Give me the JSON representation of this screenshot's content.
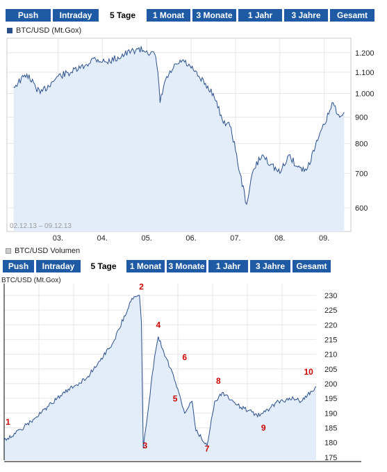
{
  "tabs1": [
    "Push",
    "Intraday",
    "5 Tage",
    "1 Monat",
    "3 Monate",
    "1 Jahr",
    "3 Jahre",
    "Gesamt"
  ],
  "active_tab": "5 Tage",
  "legend1": "BTC/USD (Mt.Gox)",
  "legend2": "BTC/USD Volumen",
  "tabs2": [
    "Push",
    "Intraday",
    "5 Tage",
    "1 Monat",
    "3 Monate",
    "1 Jahr",
    "3 Jahre",
    "Gesamt"
  ],
  "colors": {
    "tab": "#1f5aa5",
    "line": "#2a4f8a",
    "fill": "#e3ecf9",
    "annotation": "#cc0000",
    "grid": "#e6e6e6"
  },
  "chart_data": [
    {
      "type": "area",
      "series_label": "BTC/USD (Mt.Gox)",
      "date_range": "02.12.13 – 09.12.13",
      "x_ticks": [
        "03.",
        "04.",
        "05.",
        "06.",
        "07.",
        "08.",
        "09."
      ],
      "y_ticks": [
        600,
        700,
        800,
        900,
        1000,
        1100,
        1200
      ],
      "y_tick_labels": [
        "600",
        "700",
        "800",
        "900",
        "1.000",
        "1.100",
        "1.200"
      ],
      "ylim": [
        540,
        1280
      ],
      "y_scale": "log",
      "x": [
        2.0,
        2.3,
        2.6,
        3.0,
        3.3,
        3.6,
        3.8,
        4.1,
        4.5,
        4.8,
        5.0,
        5.2,
        5.25,
        5.3,
        5.4,
        5.6,
        5.8,
        6.0,
        6.2,
        6.5,
        6.7,
        6.9,
        7.1,
        7.25,
        7.4,
        7.6,
        7.8,
        8.0,
        8.2,
        8.4,
        8.6,
        8.8,
        9.0,
        9.2,
        9.3,
        9.45
      ],
      "values": [
        1030,
        1090,
        1000,
        1080,
        1100,
        1130,
        1170,
        1150,
        1190,
        1220,
        1210,
        1180,
        1100,
        960,
        1050,
        1120,
        1160,
        1120,
        1070,
        1000,
        890,
        860,
        700,
        610,
        710,
        760,
        730,
        700,
        760,
        720,
        710,
        790,
        870,
        960,
        910,
        920
      ]
    },
    {
      "type": "area",
      "series_label": "BTC/USD (Mt.Gox)",
      "y_ticks": [
        175,
        180,
        185,
        190,
        195,
        200,
        205,
        210,
        215,
        220,
        225,
        230
      ],
      "ylim": [
        174,
        234
      ],
      "x": [
        0,
        0.3,
        0.8,
        1.5,
        2.2,
        2.9,
        3.4,
        3.6,
        3.65,
        3.7,
        4.0,
        4.1,
        4.3,
        4.5,
        4.8,
        5.0,
        5.1,
        5.4,
        5.6,
        5.8,
        6.3,
        6.8,
        7.3,
        7.7,
        7.9,
        8.3
      ],
      "values": [
        181,
        183,
        188,
        196,
        202,
        214,
        229,
        230,
        221,
        178,
        209,
        216,
        209,
        203,
        190,
        194,
        184,
        179,
        194,
        197,
        192,
        189,
        194,
        195,
        194,
        199
      ],
      "annotations": [
        {
          "label": "1",
          "x": 0.1,
          "y": 186
        },
        {
          "label": "2",
          "x": 3.65,
          "y": 232
        },
        {
          "label": "3",
          "x": 3.75,
          "y": 178
        },
        {
          "label": "4",
          "x": 4.1,
          "y": 219
        },
        {
          "label": "5",
          "x": 4.55,
          "y": 194
        },
        {
          "label": "6",
          "x": 4.8,
          "y": 208
        },
        {
          "label": "7",
          "x": 5.4,
          "y": 177
        },
        {
          "label": "8",
          "x": 5.7,
          "y": 200
        },
        {
          "label": "9",
          "x": 6.9,
          "y": 184
        },
        {
          "label": "10",
          "x": 8.1,
          "y": 203
        }
      ]
    }
  ]
}
